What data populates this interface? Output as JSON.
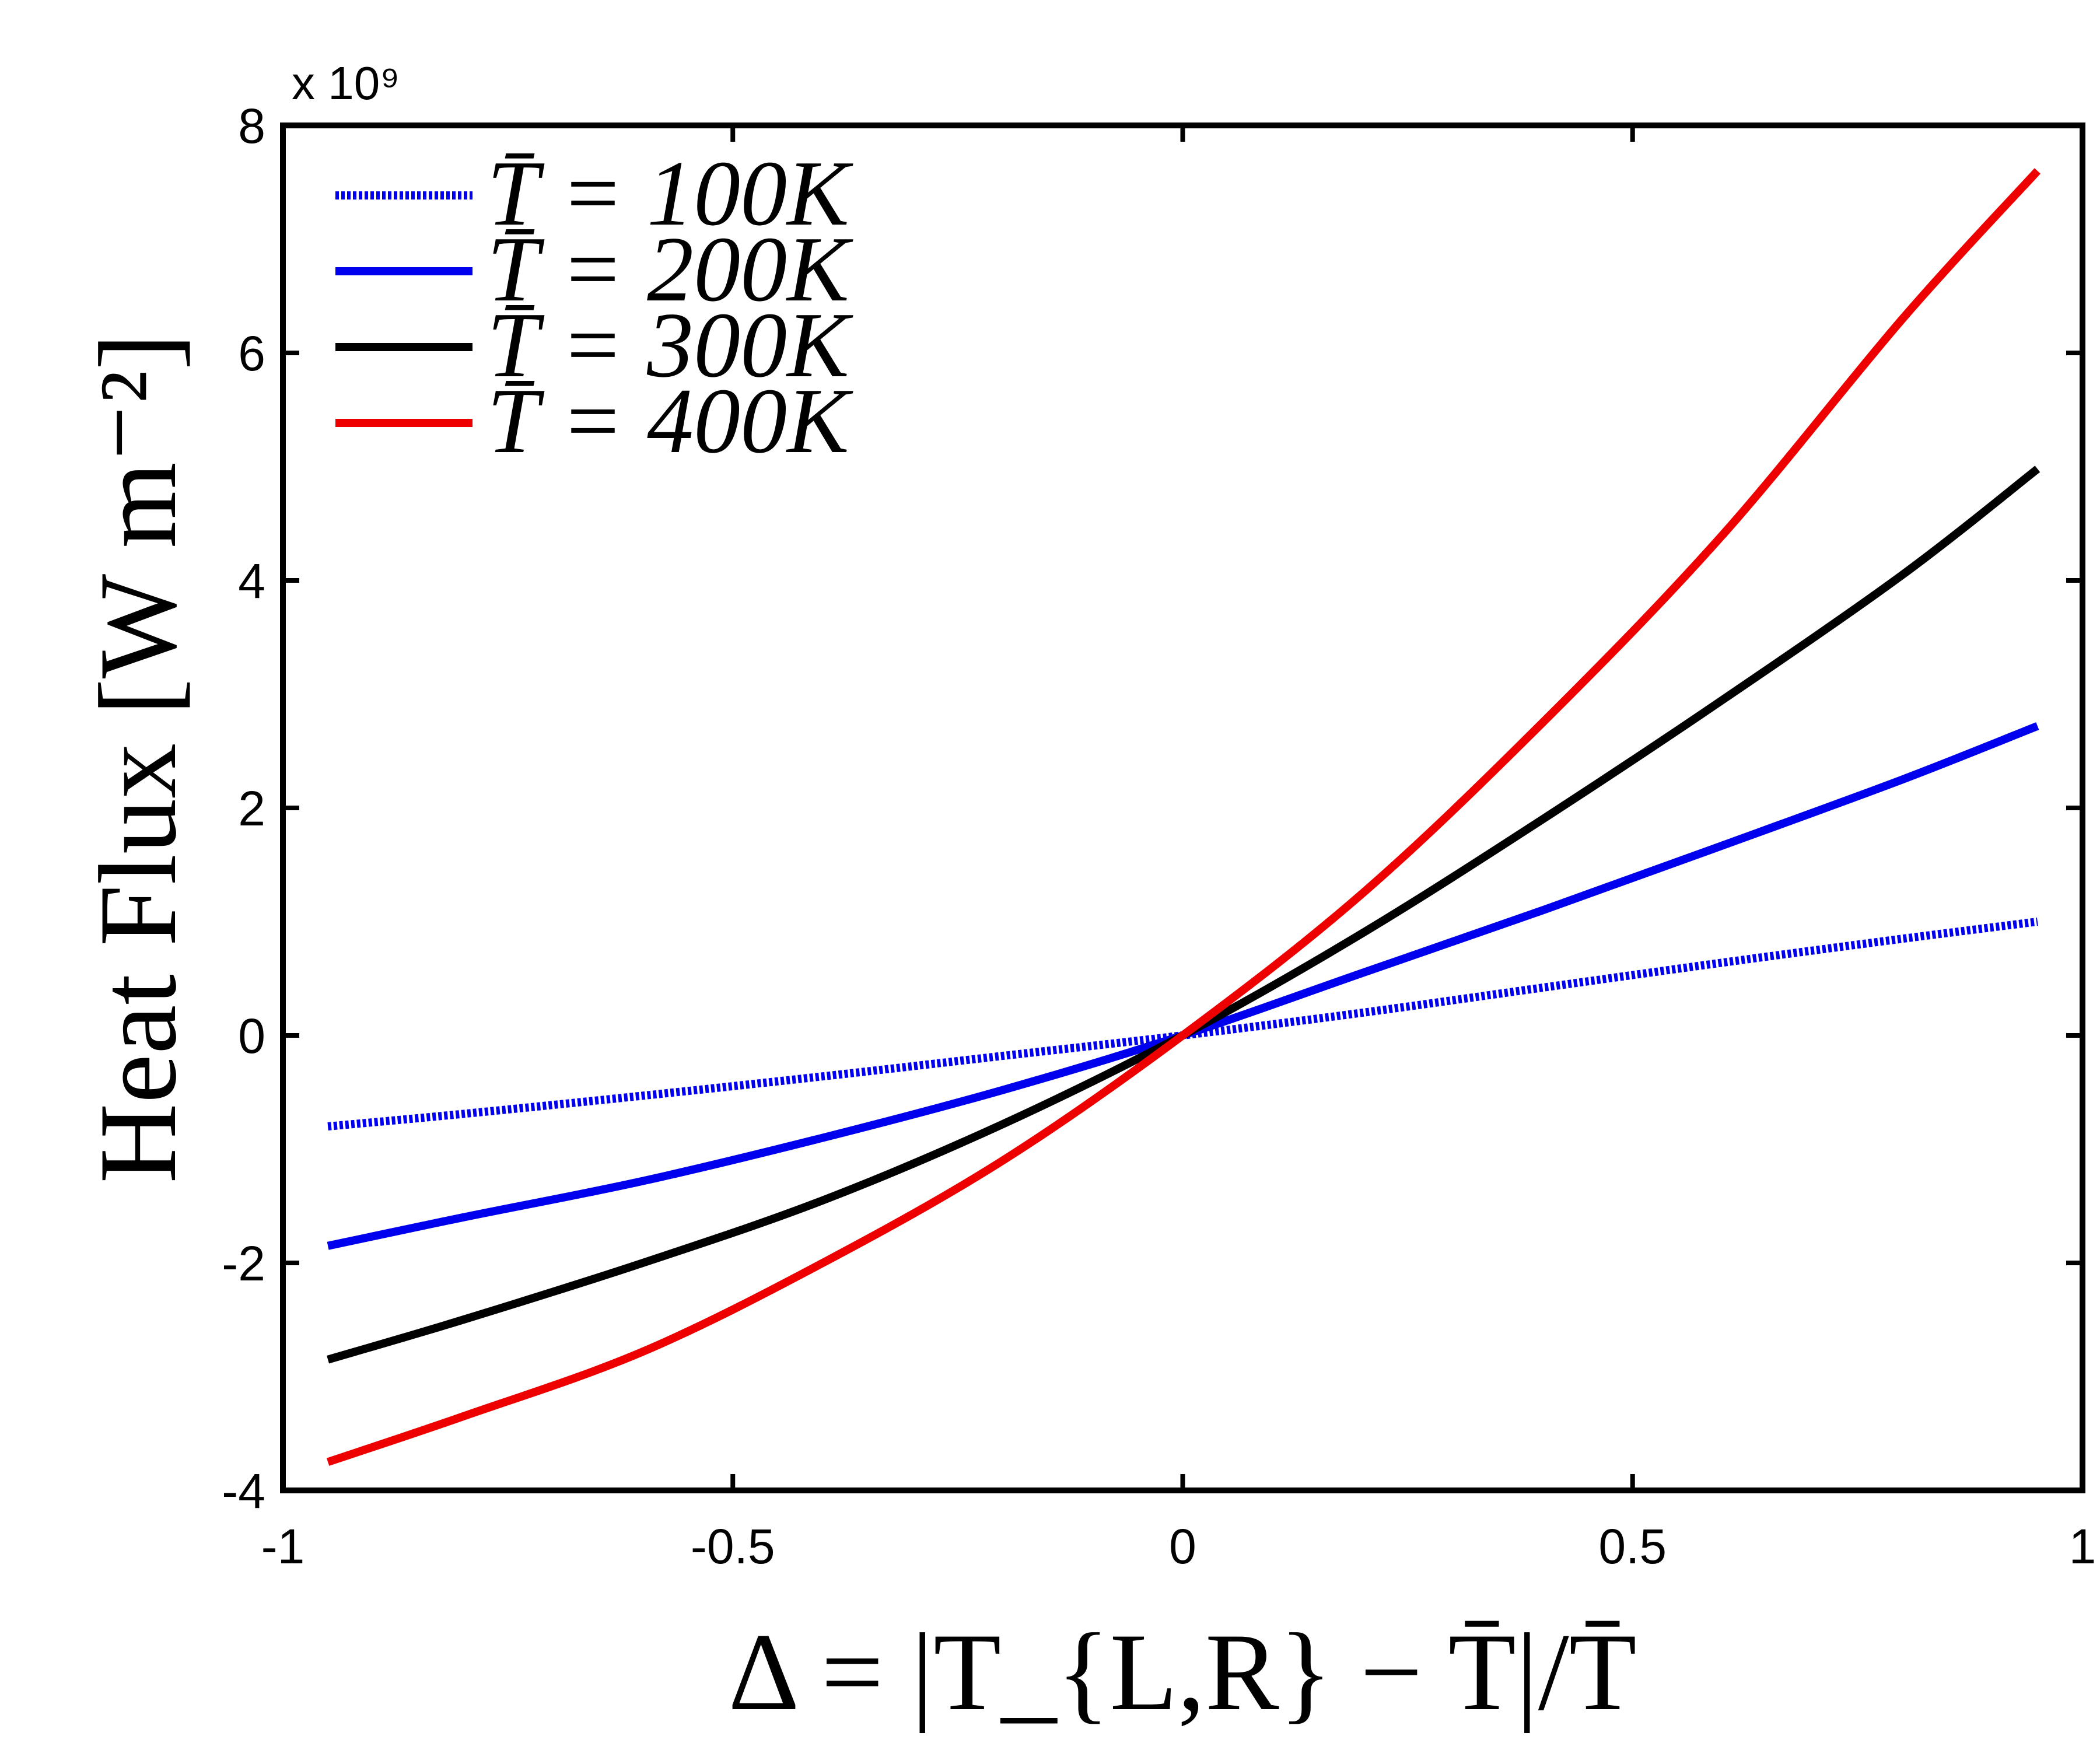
{
  "chart_data": {
    "type": "line",
    "title": "",
    "xlabel": "Δ = |T_{L,R} − T̄|/T̄",
    "ylabel": "Heat Flux [W m⁻²]",
    "y_multiplier": "x 10⁹",
    "xlim": [
      -1,
      1
    ],
    "ylim": [
      -4,
      8
    ],
    "x_ticks": [
      -1,
      -0.5,
      0,
      0.5,
      1
    ],
    "x_tick_labels": [
      "-1",
      "-0.5",
      "0",
      "0.5",
      "1"
    ],
    "y_ticks": [
      -4,
      -2,
      0,
      2,
      4,
      6,
      8
    ],
    "y_tick_labels": [
      "-4",
      "-2",
      "0",
      "2",
      "4",
      "6",
      "8"
    ],
    "grid": false,
    "legend_position": "top-left",
    "x": [
      -0.95,
      -0.8,
      -0.6,
      -0.4,
      -0.2,
      0,
      0.2,
      0.4,
      0.6,
      0.8,
      0.95
    ],
    "series": [
      {
        "name": "T̄ = 100K",
        "color": "#0000ee",
        "style": "dotted",
        "values": [
          -0.8,
          -0.69,
          -0.53,
          -0.36,
          -0.18,
          0,
          0.2,
          0.42,
          0.64,
          0.85,
          1.0
        ]
      },
      {
        "name": "T̄ = 200K",
        "color": "#0000ee",
        "style": "solid",
        "values": [
          -1.85,
          -1.6,
          -1.28,
          -0.9,
          -0.48,
          0,
          0.55,
          1.1,
          1.67,
          2.25,
          2.72
        ]
      },
      {
        "name": "T̄ = 300K",
        "color": "#000000",
        "style": "solid",
        "values": [
          -2.85,
          -2.5,
          -2.0,
          -1.45,
          -0.78,
          0,
          0.9,
          1.9,
          2.95,
          4.05,
          4.98
        ]
      },
      {
        "name": "T̄ = 400K",
        "color": "#ee0000",
        "style": "solid",
        "values": [
          -3.75,
          -3.35,
          -2.78,
          -2.0,
          -1.1,
          0,
          1.25,
          2.75,
          4.4,
          6.3,
          7.6
        ]
      }
    ]
  }
}
